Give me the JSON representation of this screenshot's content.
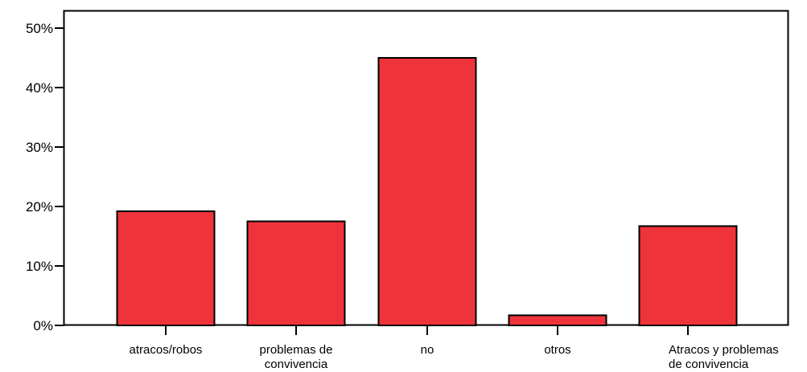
{
  "chart_data": {
    "type": "bar",
    "categories": [
      [
        "atracos/robos"
      ],
      [
        "problemas de",
        "convivencia"
      ],
      [
        "no"
      ],
      [
        "otros"
      ],
      [
        "Atracos y problemas",
        "de convivencia"
      ]
    ],
    "values": [
      19.2,
      17.5,
      45.0,
      1.7,
      16.7
    ],
    "y_ticks": [
      "0%",
      "10%",
      "20%",
      "30%",
      "40%",
      "50%"
    ],
    "ylim": [
      0,
      50
    ],
    "bar_color": "#ef333a",
    "grid": false,
    "title": "",
    "xlabel": "",
    "ylabel": ""
  }
}
